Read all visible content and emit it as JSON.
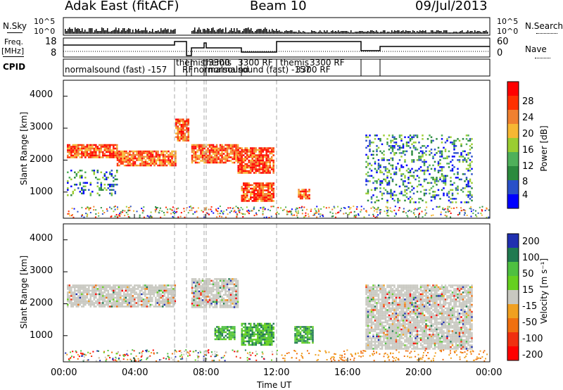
{
  "header": {
    "title": "Adak East (fitACF)",
    "beam": "Beam 10",
    "date": "09/Jul/2013"
  },
  "top_panels": {
    "nsky_label": "N.Sky",
    "nsky_ticks": [
      "10^5",
      "10^0"
    ],
    "nsearch_label": "N.Search",
    "nsearch_ticks": [
      "10^5",
      "10^0"
    ],
    "freq_label_1": "Freq.",
    "freq_label_2": "[MHz]",
    "freq_ticks": [
      "18",
      "8"
    ],
    "nave_label": "Nave",
    "nave_ticks": [
      "60",
      "0"
    ],
    "cpid_label": "CPID",
    "cpid_names": [
      "normalsound (fast) -157",
      "RF",
      "themis",
      "3300",
      "normalsound",
      "themis",
      "3300 RF",
      "normalsound (fast) -157",
      "3300 RF",
      "themis",
      "3300 RF"
    ]
  },
  "power_panel": {
    "ylabel": "Slant Range [km]",
    "yticks": [
      "4000",
      "3000",
      "2000",
      "1000"
    ],
    "colorbar_label": "Power [dB]",
    "colorbar_ticks": [
      "28",
      "24",
      "20",
      "16",
      "12",
      "8",
      "4"
    ]
  },
  "velocity_panel": {
    "ylabel": "Slant Range [km]",
    "yticks": [
      "4000",
      "3000",
      "2000",
      "1000"
    ],
    "colorbar_label": "Velocity [m s⁻¹]",
    "colorbar_ticks": [
      "200",
      "100",
      "50",
      "15",
      "-15",
      "-50",
      "-100",
      "-200"
    ]
  },
  "xaxis": {
    "ticks": [
      "00:00",
      "04:00",
      "08:00",
      "12:00",
      "16:00",
      "20:00",
      "00:00"
    ],
    "label": "Time UT"
  },
  "colors": {
    "power_scale": [
      "#0000ff",
      "#2a50c8",
      "#2b8a3e",
      "#4fb05a",
      "#9acd32",
      "#f7b733",
      "#f08030",
      "#ff3000",
      "#ff0000"
    ],
    "velocity_scale": [
      "#2030b0",
      "#207a50",
      "#4ec040",
      "#66d020",
      "#c8c8c0",
      "#f0a020",
      "#f07010",
      "#f03010",
      "#ff0000"
    ]
  },
  "chart_data": [
    {
      "type": "heatmap",
      "name": "power",
      "x_range_hours": [
        0,
        24
      ],
      "y_range_km": [
        180,
        4500
      ],
      "echo_regions": [
        {
          "t": [
            0.2,
            3.0
          ],
          "r": [
            2100,
            2500
          ],
          "level": "high"
        },
        {
          "t": [
            3.0,
            6.3
          ],
          "r": [
            1850,
            2300
          ],
          "level": "high"
        },
        {
          "t": [
            6.3,
            7.0
          ],
          "r": [
            2600,
            3300
          ],
          "level": "high"
        },
        {
          "t": [
            7.2,
            9.8
          ],
          "r": [
            1900,
            2500
          ],
          "level": "high"
        },
        {
          "t": [
            9.8,
            11.8
          ],
          "r": [
            1600,
            2400
          ],
          "level": "high"
        },
        {
          "t": [
            10.0,
            11.8
          ],
          "r": [
            700,
            1300
          ],
          "level": "high"
        },
        {
          "t": [
            13.2,
            13.8
          ],
          "r": [
            800,
            1100
          ],
          "level": "high"
        },
        {
          "t": [
            17.0,
            23.0
          ],
          "r": [
            700,
            2800
          ],
          "level": "low"
        },
        {
          "t": [
            0.2,
            3.0
          ],
          "r": [
            900,
            1700
          ],
          "level": "low"
        }
      ]
    },
    {
      "type": "heatmap",
      "name": "velocity",
      "x_range_hours": [
        0,
        24
      ],
      "y_range_km": [
        180,
        4500
      ],
      "echo_regions": [
        {
          "t": [
            0.2,
            6.3
          ],
          "r": [
            1900,
            2600
          ],
          "level": "near-zero"
        },
        {
          "t": [
            7.2,
            9.8
          ],
          "r": [
            1900,
            2800
          ],
          "level": "near-zero"
        },
        {
          "t": [
            8.5,
            9.6
          ],
          "r": [
            900,
            1300
          ],
          "level": "positive"
        },
        {
          "t": [
            10.0,
            11.8
          ],
          "r": [
            700,
            1400
          ],
          "level": "positive"
        },
        {
          "t": [
            13.0,
            14.0
          ],
          "r": [
            800,
            1300
          ],
          "level": "positive"
        },
        {
          "t": [
            17.0,
            23.0
          ],
          "r": [
            600,
            2600
          ],
          "level": "near-zero"
        }
      ]
    }
  ]
}
